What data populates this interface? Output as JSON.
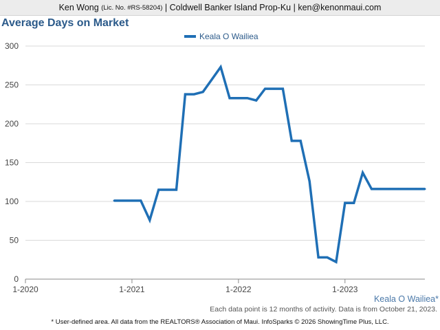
{
  "header": {
    "name": "Ken Wong",
    "license": "(Lic. No. #RS-58204)",
    "company": "| Coldwell Banker Island Prop-Ku |",
    "email": "ken@kenonmaui.com"
  },
  "chart_title": "Average Days on Market",
  "area_label": "Keala O Wailiea*",
  "note": "Each data point is 12 months of activity. Data is from October 21, 2023.",
  "footer": "* User-defined area. All data from the REALTORS® Association of Maui. InfoSparks © 2026 ShowingTime Plus, LLC.",
  "colors": {
    "line": "#1f6fb5",
    "grid": "#d9d9d9",
    "axis": "#888888",
    "title": "#2b5a8a"
  },
  "chart_data": {
    "type": "line",
    "title": "Average Days on Market",
    "xlabel": "",
    "ylabel": "",
    "ylim": [
      0,
      300
    ],
    "yticks": [
      0,
      50,
      100,
      150,
      200,
      250,
      300
    ],
    "xticks": [
      {
        "x": "2020-01",
        "label": "1-2020"
      },
      {
        "x": "2021-01",
        "label": "1-2021"
      },
      {
        "x": "2022-01",
        "label": "1-2022"
      },
      {
        "x": "2023-01",
        "label": "1-2023"
      }
    ],
    "xlim": [
      "2020-01",
      "2023-10"
    ],
    "grid": true,
    "legend": "top-center",
    "series": [
      {
        "name": "Keala O Wailiea",
        "color": "#1f6fb5",
        "x": [
          "2020-11",
          "2020-12",
          "2021-01",
          "2021-02",
          "2021-03",
          "2021-04",
          "2021-05",
          "2021-06",
          "2021-07",
          "2021-08",
          "2021-09",
          "2021-10",
          "2021-11",
          "2021-12",
          "2022-01",
          "2022-02",
          "2022-03",
          "2022-04",
          "2022-05",
          "2022-06",
          "2022-07",
          "2022-08",
          "2022-09",
          "2022-10",
          "2022-11",
          "2022-12",
          "2023-01",
          "2023-02",
          "2023-03",
          "2023-04",
          "2023-05",
          "2023-06",
          "2023-07",
          "2023-08",
          "2023-09",
          "2023-10"
        ],
        "values": [
          101,
          101,
          101,
          101,
          76,
          115,
          115,
          115,
          238,
          238,
          241,
          257,
          273,
          233,
          233,
          233,
          230,
          245,
          245,
          245,
          178,
          178,
          126,
          28,
          28,
          22,
          98,
          98,
          137,
          116,
          116,
          116,
          116,
          116,
          116,
          116
        ]
      }
    ]
  }
}
